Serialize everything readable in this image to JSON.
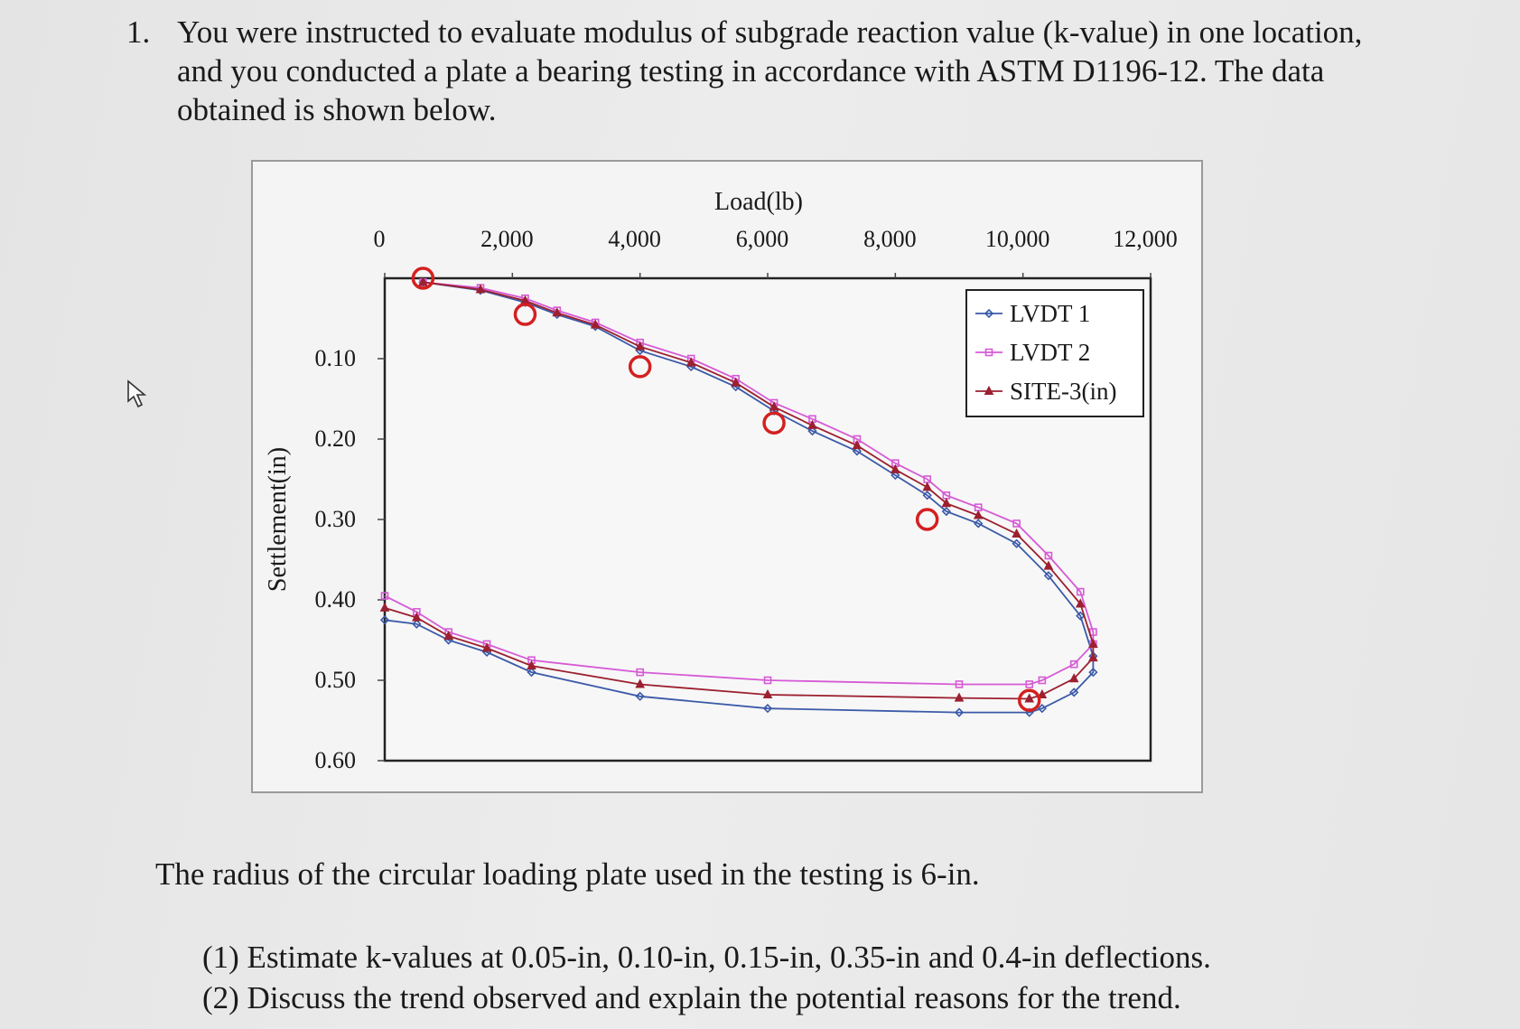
{
  "question": {
    "number": "1.",
    "text": "You were instructed to evaluate modulus of subgrade reaction value (k-value) in one location, and you conducted a plate a bearing testing in accordance with ASTM D1196-12. The data obtained is shown below."
  },
  "chart_data": {
    "type": "line",
    "xlabel": "Load(lb)",
    "ylabel": "Settlement(in)",
    "x_ticks": [
      "0",
      "2,000",
      "4,000",
      "6,000",
      "8,000",
      "10,000",
      "12,000"
    ],
    "y_ticks": [
      "0.10",
      "0.20",
      "0.30",
      "0.40",
      "0.50",
      "0.60"
    ],
    "xlim": [
      0,
      12000
    ],
    "ylim": [
      0,
      0.6
    ],
    "y_inverted": true,
    "x_axis_position": "top",
    "legend_position": "top-right",
    "series": [
      {
        "name": "LVDT 1",
        "color": "#3b5aa8",
        "marker": "diamond",
        "x": [
          600,
          1500,
          2200,
          2700,
          3300,
          4000,
          4800,
          5500,
          6100,
          6700,
          7400,
          8000,
          8500,
          8800,
          9300,
          9900,
          10400,
          10900,
          11100,
          11100,
          10800,
          10300,
          10100,
          9000,
          6000,
          4000,
          2300,
          1600,
          1000,
          500,
          0
        ],
        "y": [
          0.005,
          0.015,
          0.03,
          0.045,
          0.06,
          0.09,
          0.11,
          0.135,
          0.165,
          0.19,
          0.215,
          0.245,
          0.27,
          0.29,
          0.305,
          0.33,
          0.37,
          0.42,
          0.47,
          0.49,
          0.515,
          0.535,
          0.54,
          0.54,
          0.535,
          0.52,
          0.49,
          0.465,
          0.45,
          0.43,
          0.425
        ]
      },
      {
        "name": "LVDT 2",
        "color": "#d65ad6",
        "marker": "square",
        "x": [
          600,
          1500,
          2200,
          2700,
          3300,
          4000,
          4800,
          5500,
          6100,
          6700,
          7400,
          8000,
          8500,
          8800,
          9300,
          9900,
          10400,
          10900,
          11100,
          11100,
          10800,
          10300,
          10100,
          9000,
          6000,
          4000,
          2300,
          1600,
          1000,
          500,
          0
        ],
        "y": [
          0.005,
          0.012,
          0.025,
          0.04,
          0.055,
          0.08,
          0.1,
          0.125,
          0.155,
          0.175,
          0.2,
          0.23,
          0.25,
          0.27,
          0.285,
          0.305,
          0.345,
          0.39,
          0.44,
          0.455,
          0.48,
          0.5,
          0.505,
          0.505,
          0.5,
          0.49,
          0.475,
          0.455,
          0.44,
          0.415,
          0.395
        ]
      },
      {
        "name": "SITE-3(in)",
        "color": "#9c2030",
        "marker": "triangle",
        "x": [
          600,
          1500,
          2200,
          2700,
          3300,
          4000,
          4800,
          5500,
          6100,
          6700,
          7400,
          8000,
          8500,
          8800,
          9300,
          9900,
          10400,
          10900,
          11100,
          11100,
          10800,
          10300,
          10100,
          9000,
          6000,
          4000,
          2300,
          1600,
          1000,
          500,
          0
        ],
        "y": [
          0.005,
          0.014,
          0.028,
          0.043,
          0.058,
          0.085,
          0.105,
          0.13,
          0.16,
          0.183,
          0.208,
          0.238,
          0.26,
          0.28,
          0.295,
          0.318,
          0.358,
          0.405,
          0.455,
          0.472,
          0.498,
          0.518,
          0.523,
          0.522,
          0.518,
          0.505,
          0.482,
          0.46,
          0.445,
          0.422,
          0.41
        ]
      }
    ],
    "circled_points": [
      {
        "x": 600,
        "y": 0.0
      },
      {
        "x": 2200,
        "y": 0.045
      },
      {
        "x": 4000,
        "y": 0.11
      },
      {
        "x": 6100,
        "y": 0.18
      },
      {
        "x": 8500,
        "y": 0.3
      },
      {
        "x": 10100,
        "y": 0.525
      }
    ]
  },
  "note": "The radius of the circular loading plate used in the testing is 6-in.",
  "tasks": [
    "(1) Estimate k-values at 0.05-in, 0.10-in, 0.15-in, 0.35-in and 0.4-in deflections.",
    "(2) Discuss the trend observed and explain the potential reasons for the trend."
  ]
}
